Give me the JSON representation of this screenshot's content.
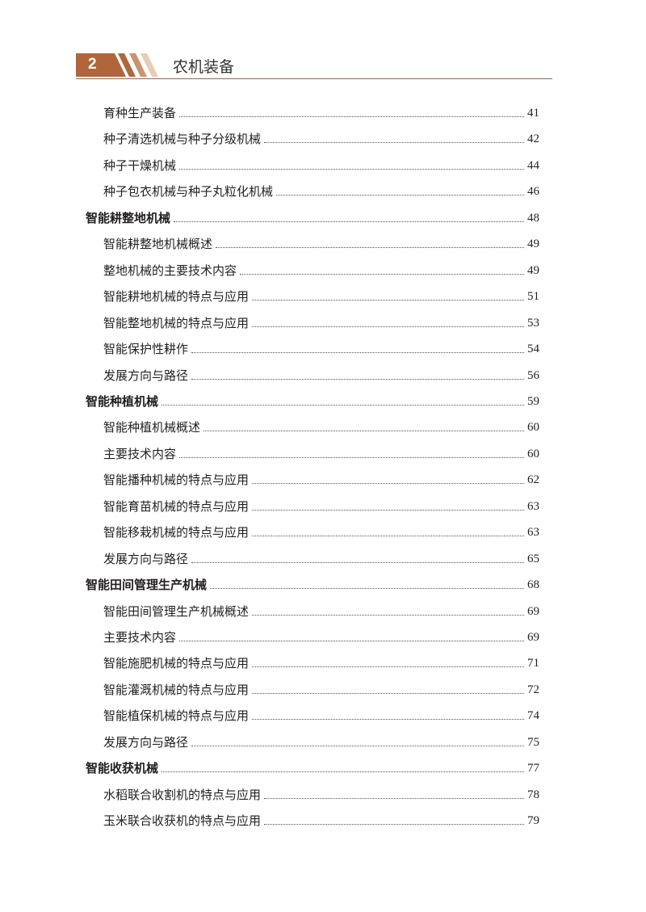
{
  "header": {
    "chapter_number": "2",
    "chapter_title": "农机装备",
    "accent_color": "#b0663a"
  },
  "toc": [
    {
      "level": 2,
      "title": "育种生产装备",
      "page": "41"
    },
    {
      "level": 2,
      "title": "种子清选机械与种子分级机械",
      "page": "42"
    },
    {
      "level": 2,
      "title": "种子干燥机械",
      "page": "44"
    },
    {
      "level": 2,
      "title": "种子包衣机械与种子丸粒化机械",
      "page": "46"
    },
    {
      "level": 1,
      "title": "智能耕整地机械",
      "page": "48"
    },
    {
      "level": 2,
      "title": "智能耕整地机械概述",
      "page": "49"
    },
    {
      "level": 2,
      "title": "整地机械的主要技术内容",
      "page": "49"
    },
    {
      "level": 2,
      "title": "智能耕地机械的特点与应用",
      "page": "51"
    },
    {
      "level": 2,
      "title": "智能整地机械的特点与应用",
      "page": "53"
    },
    {
      "level": 2,
      "title": "智能保护性耕作",
      "page": "54"
    },
    {
      "level": 2,
      "title": "发展方向与路径",
      "page": "56"
    },
    {
      "level": 1,
      "title": "智能种植机械",
      "page": "59"
    },
    {
      "level": 2,
      "title": "智能种植机械概述",
      "page": "60"
    },
    {
      "level": 2,
      "title": "主要技术内容",
      "page": "60"
    },
    {
      "level": 2,
      "title": "智能播种机械的特点与应用",
      "page": "62"
    },
    {
      "level": 2,
      "title": "智能育苗机械的特点与应用",
      "page": "63"
    },
    {
      "level": 2,
      "title": "智能移栽机械的特点与应用",
      "page": "63"
    },
    {
      "level": 2,
      "title": "发展方向与路径",
      "page": "65"
    },
    {
      "level": 1,
      "title": "智能田间管理生产机械",
      "page": "68"
    },
    {
      "level": 2,
      "title": "智能田间管理生产机械概述",
      "page": "69"
    },
    {
      "level": 2,
      "title": "主要技术内容",
      "page": "69"
    },
    {
      "level": 2,
      "title": "智能施肥机械的特点与应用",
      "page": "71"
    },
    {
      "level": 2,
      "title": "智能灌溉机械的特点与应用",
      "page": "72"
    },
    {
      "level": 2,
      "title": "智能植保机械的特点与应用",
      "page": "74"
    },
    {
      "level": 2,
      "title": "发展方向与路径",
      "page": "75"
    },
    {
      "level": 1,
      "title": "智能收获机械",
      "page": "77"
    },
    {
      "level": 2,
      "title": "水稻联合收割机的特点与应用",
      "page": "78"
    },
    {
      "level": 2,
      "title": "玉米联合收获机的特点与应用",
      "page": "79"
    }
  ]
}
